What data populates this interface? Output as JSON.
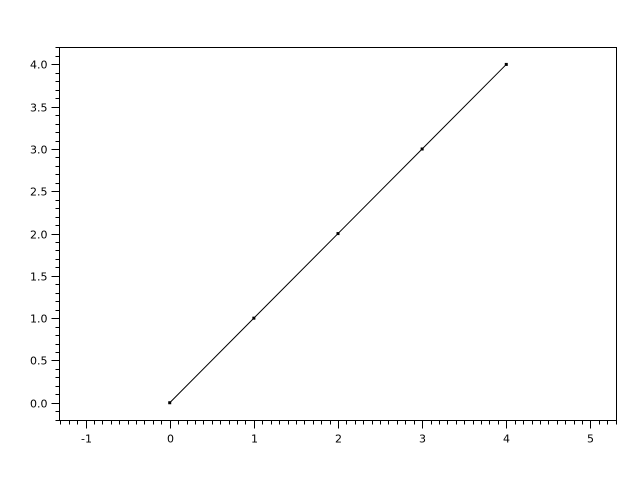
{
  "chart_data": {
    "type": "line",
    "title": "",
    "xlabel": "",
    "ylabel": "",
    "x": [
      0,
      1,
      2,
      3,
      4
    ],
    "series": [
      {
        "values": [
          0,
          1,
          2,
          3,
          4
        ],
        "color": "#000000",
        "marker": "dot"
      }
    ],
    "xlim": [
      -1.31,
      5.31
    ],
    "ylim": [
      -0.21,
      4.2
    ],
    "x_ticks": [
      "-1",
      "0",
      "1",
      "2",
      "3",
      "4",
      "5"
    ],
    "y_ticks": [
      "0.0",
      "0.5",
      "1.0",
      "1.5",
      "2.0",
      "2.5",
      "3.0",
      "3.5",
      "4.0"
    ],
    "x_minor_step": 0.1,
    "y_minor_step": 0.1,
    "grid": false,
    "legend": "none"
  }
}
